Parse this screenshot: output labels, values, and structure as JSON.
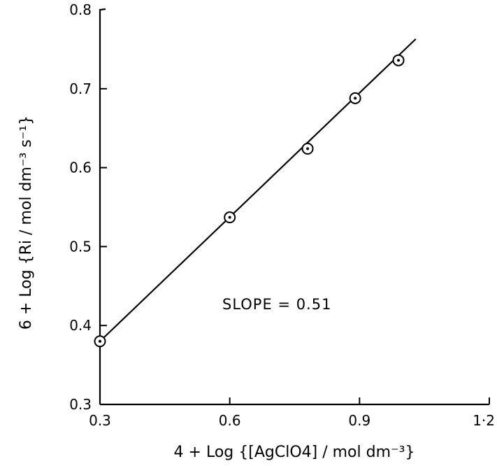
{
  "chart_data": {
    "type": "scatter",
    "title": "",
    "xlabel": "4 + Log {[AgClO4] / mol dm⁻³}",
    "ylabel": "6 + Log {Ri / mol dm⁻³ s⁻¹}",
    "xlim": [
      0.3,
      1.2
    ],
    "ylim": [
      0.3,
      0.8
    ],
    "x_ticks": [
      "0.3",
      "0.6",
      "0.9",
      "1·2"
    ],
    "y_ticks": [
      "0.3",
      "0.4",
      "0.5",
      "0.6",
      "0.7",
      "0.8"
    ],
    "grid": false,
    "series": [
      {
        "points": [
          {
            "x": 0.3,
            "y": 0.38
          },
          {
            "x": 0.6,
            "y": 0.537
          },
          {
            "x": 0.78,
            "y": 0.624
          },
          {
            "x": 0.89,
            "y": 0.688
          },
          {
            "x": 0.99,
            "y": 0.736
          }
        ]
      }
    ],
    "fit_line": {
      "x": [
        0.3,
        1.03
      ],
      "y": [
        0.38,
        0.763
      ]
    },
    "annotation": "SLOPE = 0.51"
  }
}
